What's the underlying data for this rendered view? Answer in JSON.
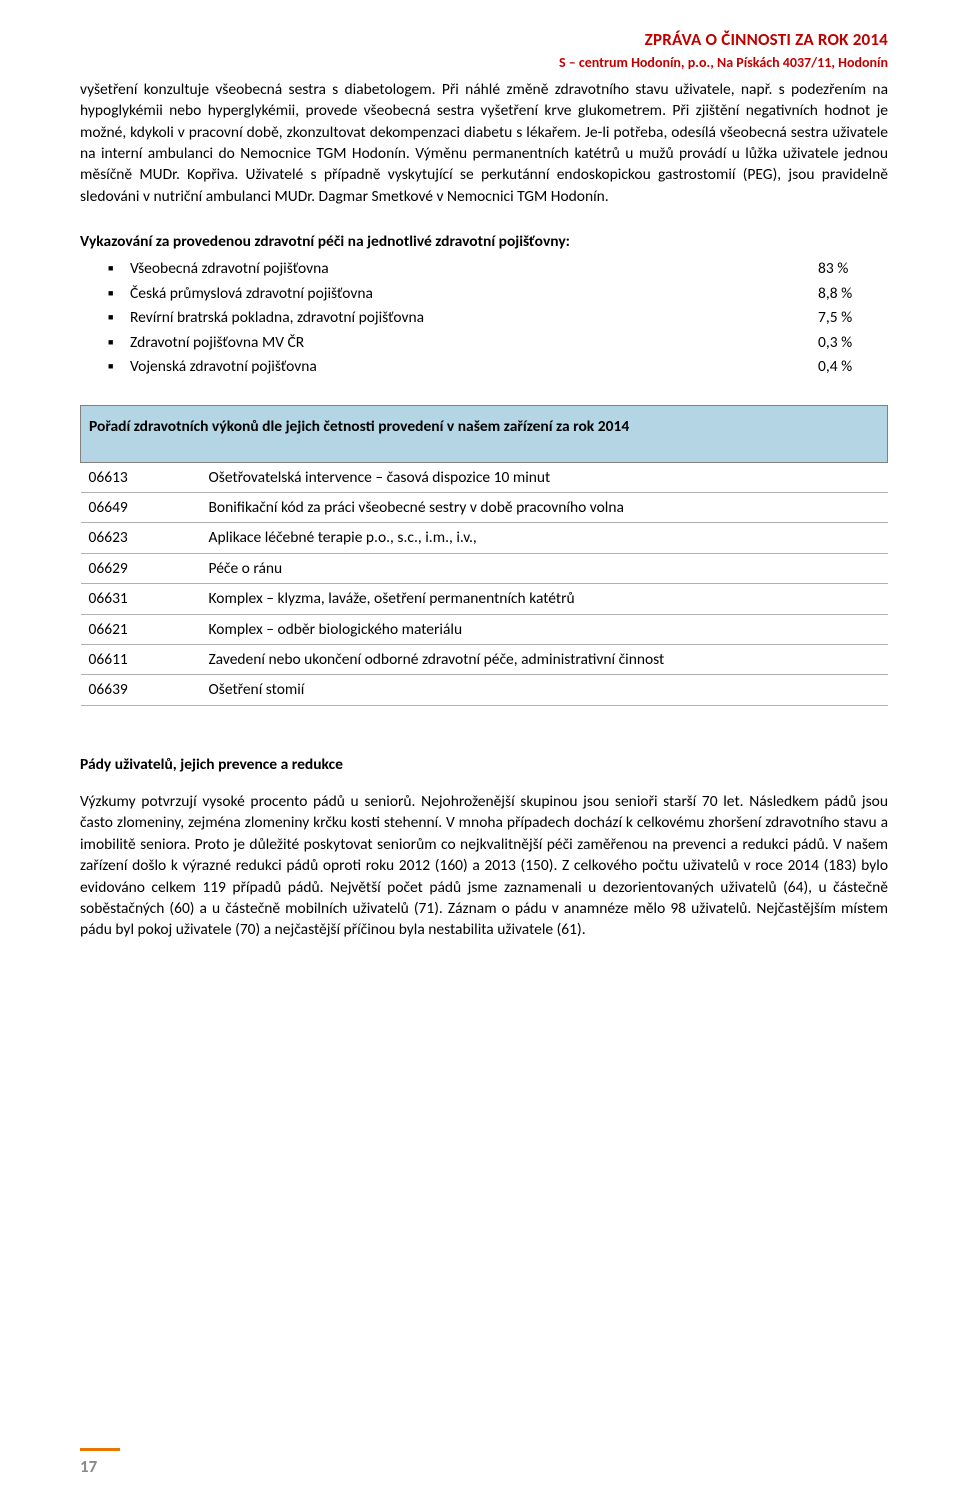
{
  "header": {
    "title": "ZPRÁVA O ČINNOSTI ZA ROK 2014",
    "subtitle": "S – centrum Hodonín, p.o., Na Pískách 4037/11, Hodonín"
  },
  "paragraph1": "vyšetření konzultuje všeobecná sestra s diabetologem. Při náhlé změně zdravotního stavu uživatele, např. s podezřením na hypoglykémii nebo hyperglykémii, provede všeobecná sestra vyšetření krve glukometrem. Při zjištění negativních hodnot je možné, kdykoli v pracovní době, zkonzultovat dekompenzaci diabetu s lékařem. Je-li potřeba, odesílá všeobecná sestra uživatele na interní ambulanci do Nemocnice TGM Hodonín. Výměnu permanentních katétrů u mužů provádí u lůžka uživatele jednou měsíčně MUDr. Kopřiva. Uživatelé s případně vyskytující se perkutánní endoskopickou gastrostomií (PEG), jsou pravidelně sledováni v nutriční ambulanci MUDr. Dagmar Smetkové v Nemocnici TGM Hodonín.",
  "insurance": {
    "heading": "Vykazování za provedenou zdravotní péči na jednotlivé zdravotní pojišťovny:",
    "items": [
      {
        "label": "Všeobecná zdravotní pojišťovna",
        "pct": "83 %"
      },
      {
        "label": "Česká průmyslová zdravotní pojišťovna",
        "pct": "8,8 %"
      },
      {
        "label": " Revírní bratrská pokladna, zdravotní pojišťovna",
        "pct": "7,5 %"
      },
      {
        "label": "Zdravotní pojišťovna MV ČR",
        "pct": "0,3 %"
      },
      {
        "label": "Vojenská zdravotní pojišťovna",
        "pct": "0,4 %"
      }
    ]
  },
  "procedures": {
    "heading": "Pořadí zdravotních výkonů dle jejich četnosti provedení v našem zařízení za  rok 2014",
    "rows": [
      {
        "code": "06613",
        "desc": "Ošetřovatelská intervence – časová dispozice 10 minut"
      },
      {
        "code": "06649",
        "desc": "Bonifikační kód za práci všeobecné sestry v době pracovního volna"
      },
      {
        "code": "06623",
        "desc": "Aplikace léčebné terapie p.o., s.c., i.m., i.v.,"
      },
      {
        "code": "06629",
        "desc": "Péče o ránu"
      },
      {
        "code": "06631",
        "desc": "Komplex – klyzma, laváže, ošetření permanentních katétrů"
      },
      {
        "code": "06621",
        "desc": "Komplex – odběr biologického materiálu"
      },
      {
        "code": "06611",
        "desc": "Zavedení nebo ukončení odborné zdravotní péče, administrativní činnost"
      },
      {
        "code": "06639",
        "desc": "Ošetření stomií"
      }
    ]
  },
  "falls": {
    "heading": "Pády uživatelů, jejich prevence a redukce",
    "text": "Výzkumy potvrzují vysoké procento pádů u seniorů. Nejohroženější skupinou jsou senioři starší 70 let. Následkem pádů jsou často zlomeniny, zejména zlomeniny krčku kosti stehenní. V mnoha případech dochází k celkovému zhoršení zdravotního stavu a imobilitě seniora. Proto je důležité poskytovat seniorům co nejkvalitnější péči zaměřenou na prevenci a redukci pádů. V našem zařízení došlo k výrazné redukci pádů oproti roku 2012 (160) a 2013 (150). Z celkového počtu uživatelů v roce 2014 (183) bylo evidováno celkem 119 případů pádů. Největší počet pádů jsme zaznamenali u dezorientovaných uživatelů (64), u částečně soběstačných (60) a u částečně mobilních uživatelů (71). Záznam o pádu v anamnéze mělo 98 uživatelů. Nejčastějším místem pádu byl pokoj uživatele (70) a nejčastější příčinou byla nestabilita uživatele (61)."
  },
  "page_number": "17",
  "colors": {
    "accent_red": "#c00000",
    "accent_orange": "#e97600",
    "table_header_bg": "#b4d6e4",
    "table_border": "#808080",
    "row_border": "#b0b0b0",
    "pagenum_gray": "#8a8a8a"
  }
}
